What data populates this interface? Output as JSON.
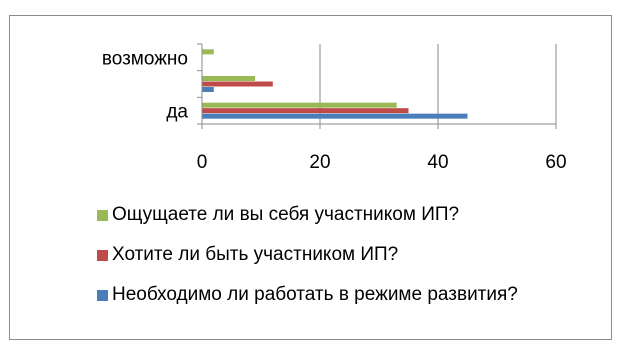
{
  "chart_data": {
    "type": "bar",
    "orientation": "horizontal",
    "categories": [
      "да",
      "",
      "возможно"
    ],
    "series": [
      {
        "name": "Необходимо ли работать в режиме развития?",
        "color": "#4a7ebb",
        "values": [
          45,
          2,
          0
        ]
      },
      {
        "name": "Хотите ли быть участником ИП?",
        "color": "#be4b48",
        "values": [
          35,
          12,
          0
        ]
      },
      {
        "name": "Ощущаете ли вы себя участником ИП?",
        "color": "#98b954",
        "values": [
          33,
          9,
          2
        ]
      }
    ],
    "xlim": [
      0,
      60
    ],
    "xticks": [
      0,
      20,
      40,
      60
    ],
    "grid": true,
    "legend_position": "bottom",
    "legend_order": [
      2,
      1,
      0
    ]
  }
}
